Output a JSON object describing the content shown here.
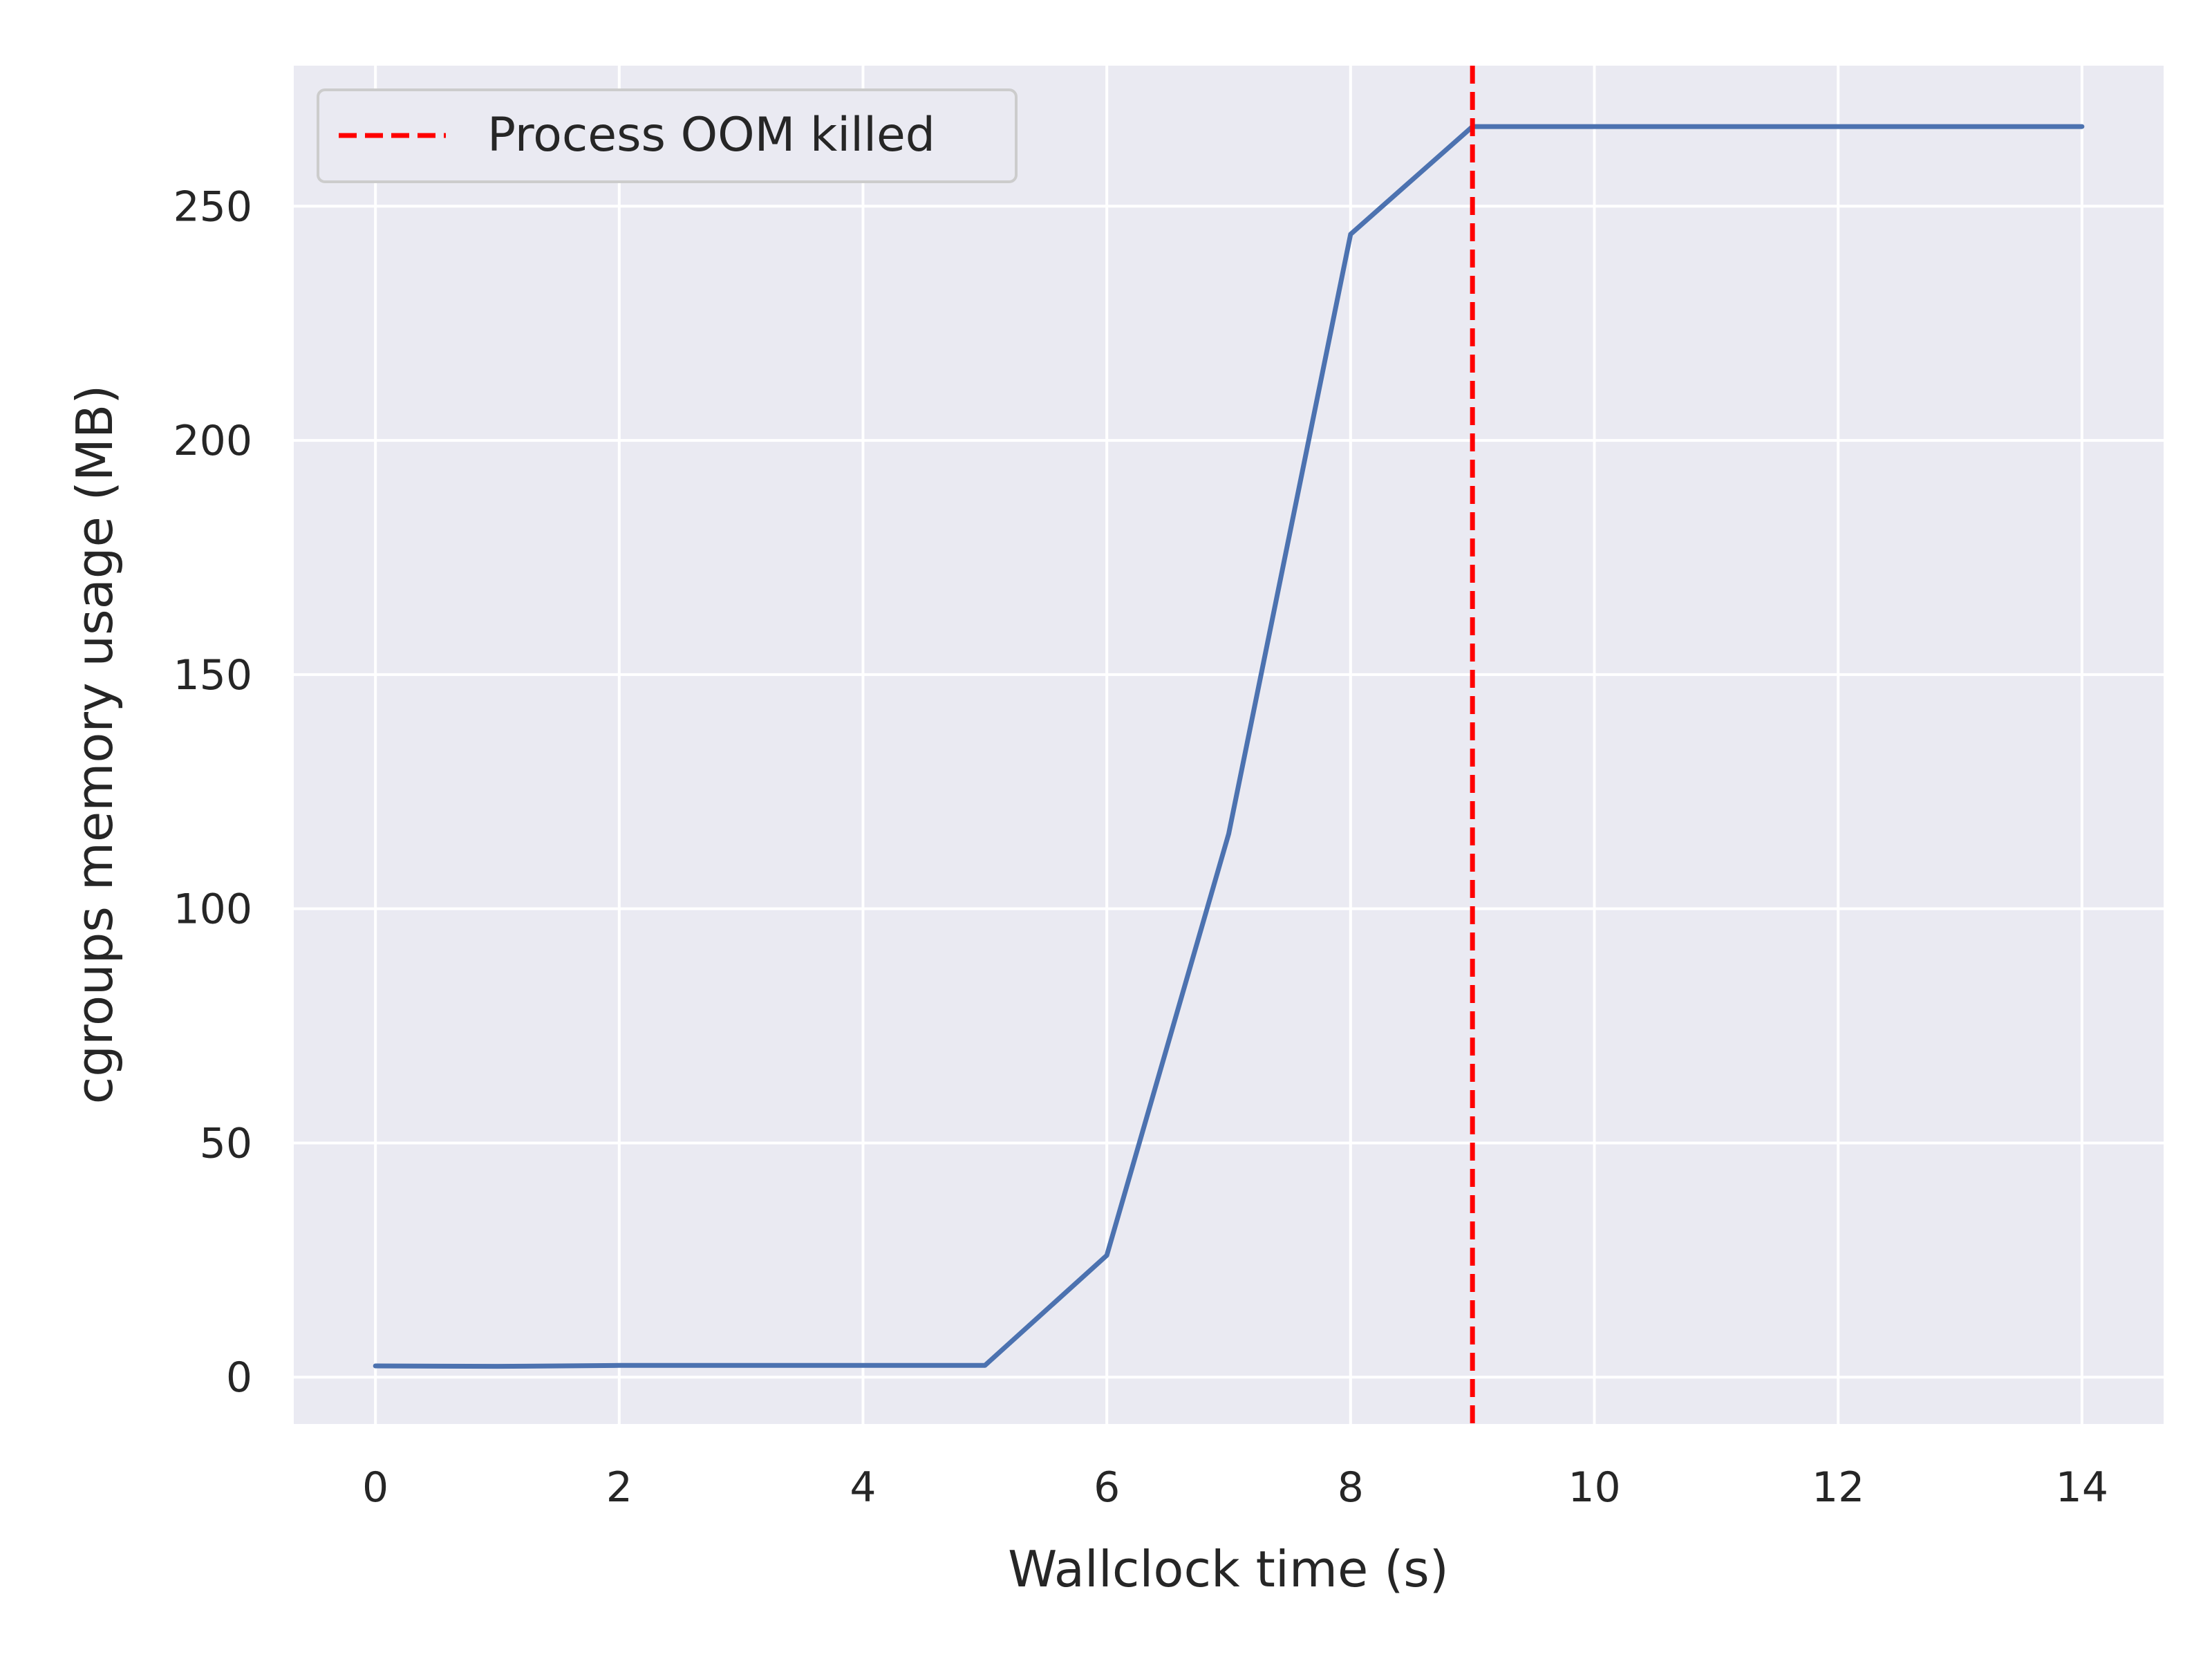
{
  "chart_data": {
    "type": "line",
    "title": "",
    "xlabel": "Wallclock time (s)",
    "ylabel": "cgroups memory usage (MB)",
    "xlim": [
      -0.67,
      14.67
    ],
    "ylim": [
      -10,
      280
    ],
    "xticks": [
      0,
      2,
      4,
      6,
      8,
      10,
      12,
      14
    ],
    "yticks": [
      0,
      50,
      100,
      150,
      200,
      250
    ],
    "grid": true,
    "legend_position": "top-left",
    "series": [
      {
        "color": "#4c72b0",
        "x": [
          0,
          1,
          2,
          3,
          4,
          5,
          6,
          7,
          8,
          9,
          10,
          11,
          12,
          13,
          14
        ],
        "y": [
          2.4,
          2.3,
          2.5,
          2.5,
          2.5,
          2.5,
          26,
          116,
          244,
          267,
          267,
          267,
          267,
          267,
          267
        ]
      }
    ],
    "vlines": [
      {
        "x": 9,
        "label": "Process OOM killed",
        "color": "#ff0000",
        "style": "dashed"
      }
    ],
    "colors": {
      "background": "#eaeaf2",
      "grid": "#ffffff",
      "text": "#262626"
    }
  }
}
